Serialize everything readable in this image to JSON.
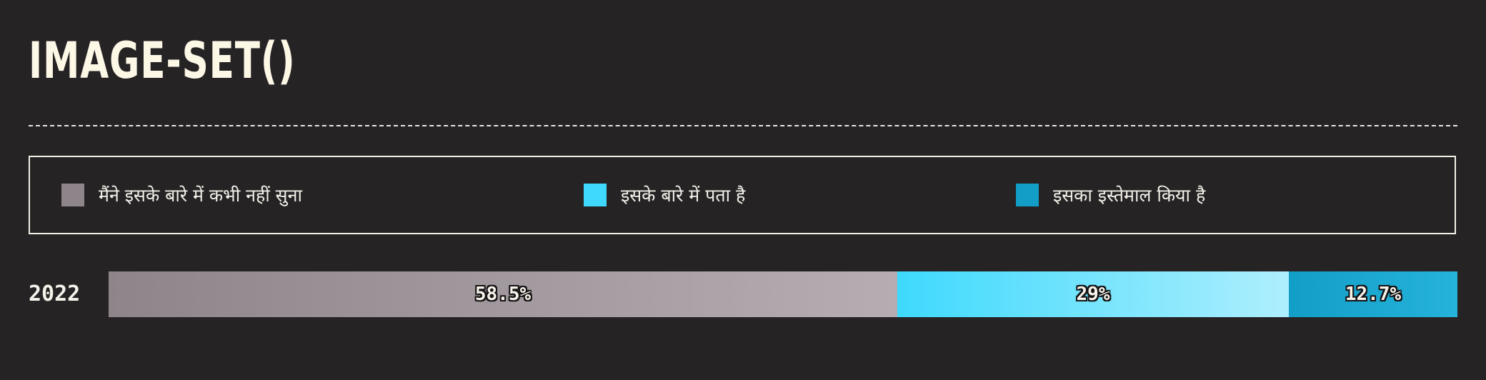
{
  "page": {
    "title": "IMAGE-SET()"
  },
  "legend": [
    {
      "label": "मैंने इसके बारे में कभी नहीं सुना",
      "color": "#8e858b"
    },
    {
      "label": "इसके बारे में पता है",
      "color": "#3ed9fd"
    },
    {
      "label": "इसका इस्तेमाल किया है",
      "color": "#129ec6"
    }
  ],
  "chart_data": {
    "type": "bar",
    "orientation": "horizontal",
    "stacked": true,
    "normalized": true,
    "title": "IMAGE-SET()",
    "categories": [
      "2022"
    ],
    "series": [
      {
        "name": "मैंने इसके बारे में कभी नहीं सुना",
        "values": [
          58.5
        ],
        "label": "58.5%",
        "colors": [
          "#8e858b",
          "#b5adb1"
        ]
      },
      {
        "name": "इसके बारे में पता है",
        "values": [
          29
        ],
        "label": "29%",
        "colors": [
          "#3ed9fd",
          "#aeeffd"
        ]
      },
      {
        "name": "इसका इस्तेमाल किया है",
        "values": [
          12.7
        ],
        "label": "12.7%",
        "colors": [
          "#129ec6",
          "#26b3db"
        ]
      }
    ],
    "xlim": [
      0,
      100
    ],
    "grid": false,
    "legend_position": "top"
  }
}
